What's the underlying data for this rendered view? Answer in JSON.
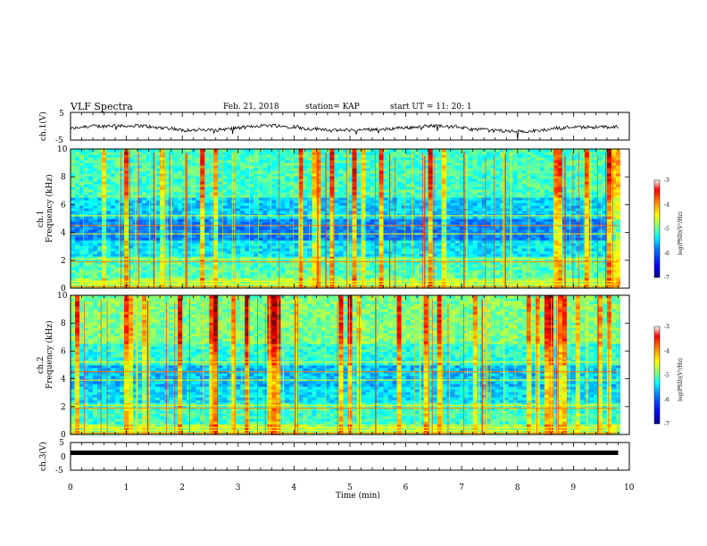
{
  "header": {
    "title": "VLF Spectra",
    "date": "Feb. 21, 2018",
    "station": "station= KAP",
    "start": "start  UT =   11: 20: 1"
  },
  "chart_data": [
    {
      "type": "line",
      "ylabel": "ch.1(V)",
      "yticks": [
        "5",
        "0",
        "-5"
      ],
      "ylim": [
        -5,
        5
      ],
      "xlim": [
        0,
        10
      ],
      "description_values": "noisy waveform centered near -1 V",
      "color": "#000000"
    },
    {
      "type": "heatmap",
      "ylabel": "ch.1\nFrequency (kHz)",
      "ylabel_line1": "ch.1",
      "ylabel_line2": "Frequency (kHz)",
      "yticks": [
        "0",
        "2",
        "4",
        "6",
        "8",
        "10"
      ],
      "ylim": [
        0,
        10
      ],
      "xlim": [
        0,
        10
      ],
      "colorbar": {
        "label": "log(PSD)(V²/Hz)",
        "ticks": [
          "-3",
          "-4",
          "-5",
          "-6",
          "-7"
        ],
        "range": [
          -7,
          -3
        ]
      }
    },
    {
      "type": "heatmap",
      "ylabel": "ch.2\nFrequency (kHz)",
      "ylabel_line1": "ch.2",
      "ylabel_line2": "Frequency (kHz)",
      "yticks": [
        "0",
        "2",
        "4",
        "6",
        "8",
        "10"
      ],
      "ylim": [
        0,
        10
      ],
      "xlim": [
        0,
        10
      ],
      "colorbar": {
        "label": "log(PSD)(V²/Hz)",
        "ticks": [
          "-3",
          "-4",
          "-5",
          "-6",
          "-7"
        ],
        "range": [
          -7,
          -3
        ]
      }
    },
    {
      "type": "line",
      "ylabel": "ch.3(V)",
      "yticks": [
        "5",
        "0",
        "-5"
      ],
      "ylim": [
        -5,
        5
      ],
      "xlim": [
        0,
        10
      ],
      "x": [
        0,
        9.8
      ],
      "y": [
        0,
        0
      ],
      "color": "#000000",
      "xlabel": "Time (min)",
      "xticks": [
        "0",
        "1",
        "2",
        "3",
        "4",
        "5",
        "6",
        "7",
        "8",
        "9",
        "10"
      ]
    }
  ],
  "colors": {
    "colormap": [
      "#000080",
      "#0000ff",
      "#0080ff",
      "#00ffff",
      "#80ff80",
      "#ffff00",
      "#ff8000",
      "#ff0000",
      "#800000"
    ]
  }
}
